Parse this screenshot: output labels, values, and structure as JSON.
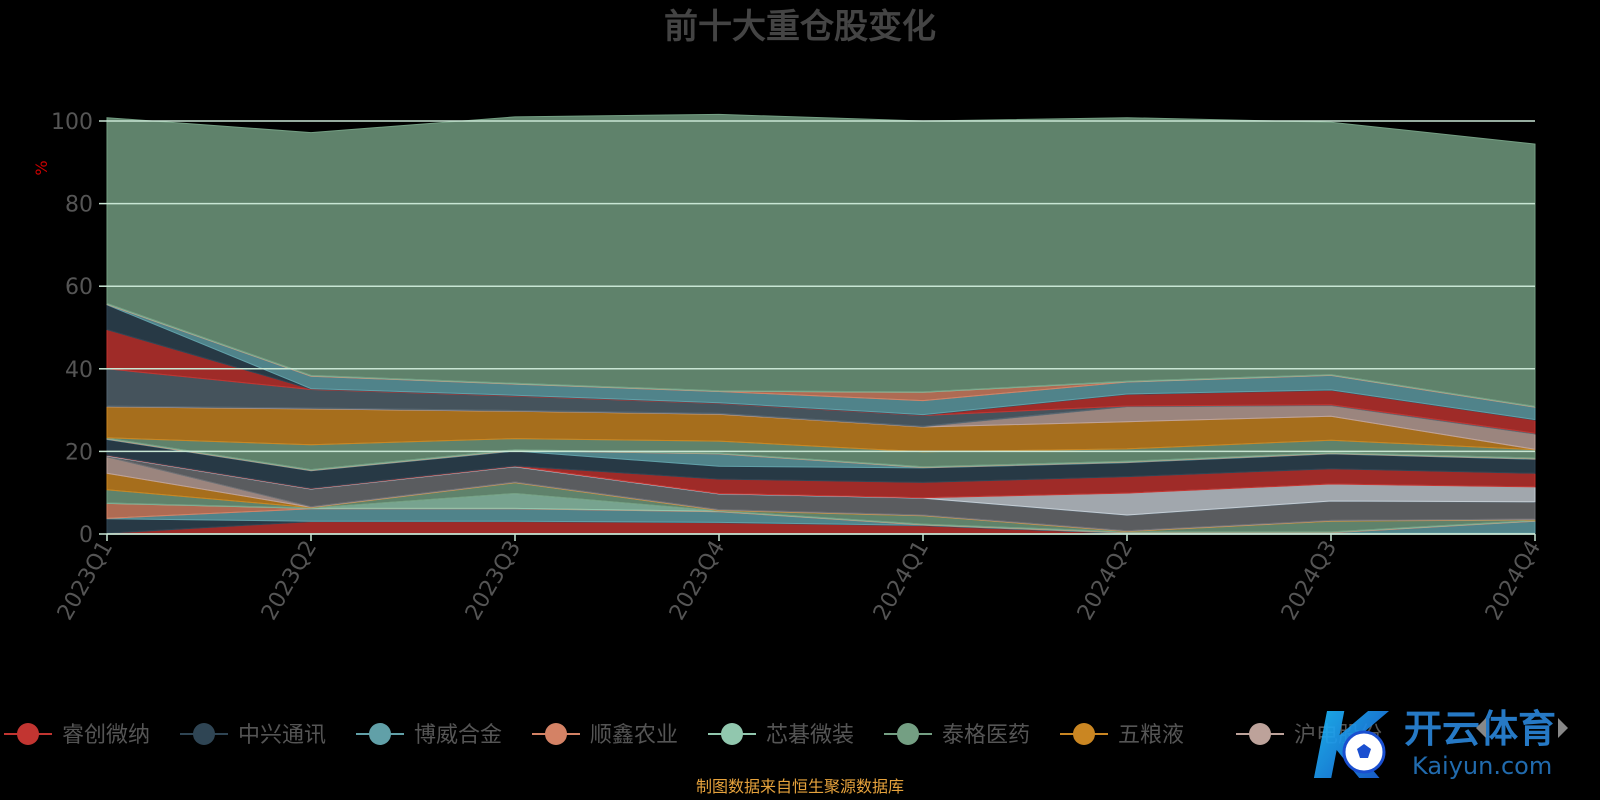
{
  "chart_data": {
    "type": "area",
    "stacked": true,
    "title": "前十大重仓股变化",
    "ylabel": "%",
    "ylim": [
      0,
      100
    ],
    "y_ticks": [
      0,
      20,
      40,
      60,
      80,
      100
    ],
    "grid": true,
    "legend_position": "bottom",
    "categories": [
      "2023Q1",
      "2023Q2",
      "2023Q3",
      "2023Q4",
      "2024Q1",
      "2024Q2",
      "2024Q3",
      "2024Q4"
    ],
    "series": [
      {
        "name": "睿创微纳",
        "color": "#c23531",
        "values": [
          0.2,
          3.0,
          3.0,
          2.7,
          2.0,
          0.1,
          0.1,
          0.1
        ]
      },
      {
        "name": "中兴通讯",
        "color": "#2f4554",
        "values": [
          3.5,
          0.1,
          0.1,
          0.1,
          0.1,
          0.1,
          0.1,
          0.1
        ]
      },
      {
        "name": "博威合金",
        "color": "#61a0a8",
        "values": [
          0.1,
          3.0,
          3.0,
          2.6,
          0.1,
          0.1,
          0.1,
          2.9
        ]
      },
      {
        "name": "顺鑫农业",
        "color": "#d48265",
        "values": [
          3.6,
          0.1,
          0.1,
          0.1,
          0.1,
          0.1,
          0.1,
          0.1
        ]
      },
      {
        "name": "芯碁微装",
        "color": "#91c7ae",
        "values": [
          0.1,
          0.1,
          3.6,
          0.1,
          0.1,
          0.1,
          0.1,
          0.1
        ]
      },
      {
        "name": "泰格医药",
        "color": "#749f83",
        "values": [
          3.2,
          0.1,
          2.6,
          0.1,
          2.0,
          0.1,
          2.6,
          0.1
        ]
      },
      {
        "name": "五粮液",
        "color": "#ca8622",
        "values": [
          4.0,
          0.1,
          0.1,
          0.1,
          0.1,
          0.1,
          0.1,
          0.1
        ]
      },
      {
        "name": "沪电股份",
        "color": "#bda29a",
        "values": [
          4.0,
          0.1,
          0.1,
          0.1,
          0.1,
          0.1,
          0.1,
          0.1
        ]
      },
      {
        "name": "",
        "color": "#6e7074",
        "values": [
          0.1,
          4.2,
          3.6,
          3.7,
          4.0,
          3.7,
          4.6,
          4.1
        ]
      },
      {
        "name": "",
        "color": "#546570",
        "values": [
          0.1,
          0.1,
          0.1,
          0.1,
          0.1,
          0.1,
          0.1,
          0.1
        ]
      },
      {
        "name": "",
        "color": "#c4ccd3",
        "values": [
          0.1,
          0.1,
          0.1,
          0.1,
          0.1,
          5.3,
          4.1,
          3.6
        ]
      },
      {
        "name": "",
        "color": "#c23531",
        "values": [
          0.1,
          0.1,
          0.1,
          3.5,
          3.7,
          4.0,
          3.7,
          3.3
        ]
      },
      {
        "name": "",
        "color": "#2f4554",
        "values": [
          3.8,
          4.2,
          3.6,
          3.1,
          3.5,
          3.4,
          3.6,
          3.4
        ]
      },
      {
        "name": "",
        "color": "#61a0a8",
        "values": [
          0.1,
          0.1,
          0.1,
          3.0,
          0.1,
          0.1,
          0.1,
          0.1
        ]
      },
      {
        "name": "",
        "color": "#d48265",
        "values": [
          0.1,
          0.1,
          0.1,
          0.1,
          0.1,
          0.1,
          0.1,
          0.1
        ]
      },
      {
        "name": "",
        "color": "#91c7ae",
        "values": [
          0.1,
          0.1,
          0.1,
          0.1,
          0.1,
          0.1,
          0.1,
          0.1
        ]
      },
      {
        "name": "",
        "color": "#749f83",
        "values": [
          0.1,
          6.0,
          2.7,
          2.9,
          3.6,
          3.0,
          3.0,
          2.0
        ]
      },
      {
        "name": "",
        "color": "#ca8622",
        "values": [
          7.5,
          8.7,
          6.6,
          6.5,
          6.0,
          6.6,
          5.8,
          0.1
        ]
      },
      {
        "name": "",
        "color": "#bda29a",
        "values": [
          0.1,
          0.1,
          0.1,
          0.1,
          0.1,
          3.6,
          2.6,
          3.7
        ]
      },
      {
        "name": "",
        "color": "#6e7074",
        "values": [
          0.1,
          0.1,
          0.1,
          0.1,
          0.1,
          0.1,
          0.1,
          0.1
        ]
      },
      {
        "name": "",
        "color": "#546570",
        "values": [
          9.0,
          4.5,
          3.5,
          2.4,
          2.6,
          0.1,
          0.1,
          0.1
        ]
      },
      {
        "name": "",
        "color": "#c23531",
        "values": [
          9.5,
          0.1,
          0.1,
          0.1,
          0.1,
          2.8,
          3.5,
          3.2
        ]
      },
      {
        "name": "",
        "color": "#2f4554",
        "values": [
          6.0,
          0.1,
          0.1,
          0.1,
          0.1,
          0.1,
          0.1,
          0.1
        ]
      },
      {
        "name": "",
        "color": "#61a0a8",
        "values": [
          0.1,
          3.0,
          2.7,
          2.7,
          3.4,
          2.9,
          3.5,
          3.0
        ]
      },
      {
        "name": "",
        "color": "#d48265",
        "values": [
          0.1,
          0.1,
          0.1,
          0.1,
          2.0,
          0.1,
          0.1,
          0.1
        ]
      },
      {
        "name": "",
        "color": "#91c7ae",
        "values": [
          0.1,
          0.1,
          0.1,
          0.1,
          0.1,
          0.1,
          0.1,
          0.1
        ]
      },
      {
        "name": "",
        "color": "#749f83",
        "values": [
          45.0,
          58.8,
          64.5,
          66.9,
          65.6,
          63.8,
          61.1,
          63.5
        ]
      }
    ],
    "source_note": "制图数据来自恒生聚源数据库",
    "legend_visible_names": [
      "睿创微纳",
      "中兴通讯",
      "博威合金",
      "顺鑫农业",
      "芯碁微装",
      "泰格医药",
      "五粮液",
      "沪电股份"
    ]
  },
  "watermark": {
    "brand_text": "开云体育",
    "brand_sub": "Kaiyun.com",
    "brand_letter": "K"
  },
  "colors": {
    "background": "#000000",
    "grid": "#c8e6d4",
    "axis_text": "#555555",
    "title": "#444444",
    "ylabel": "#cc0000",
    "source_note": "#e6a23c",
    "legend_text": "#555555"
  }
}
